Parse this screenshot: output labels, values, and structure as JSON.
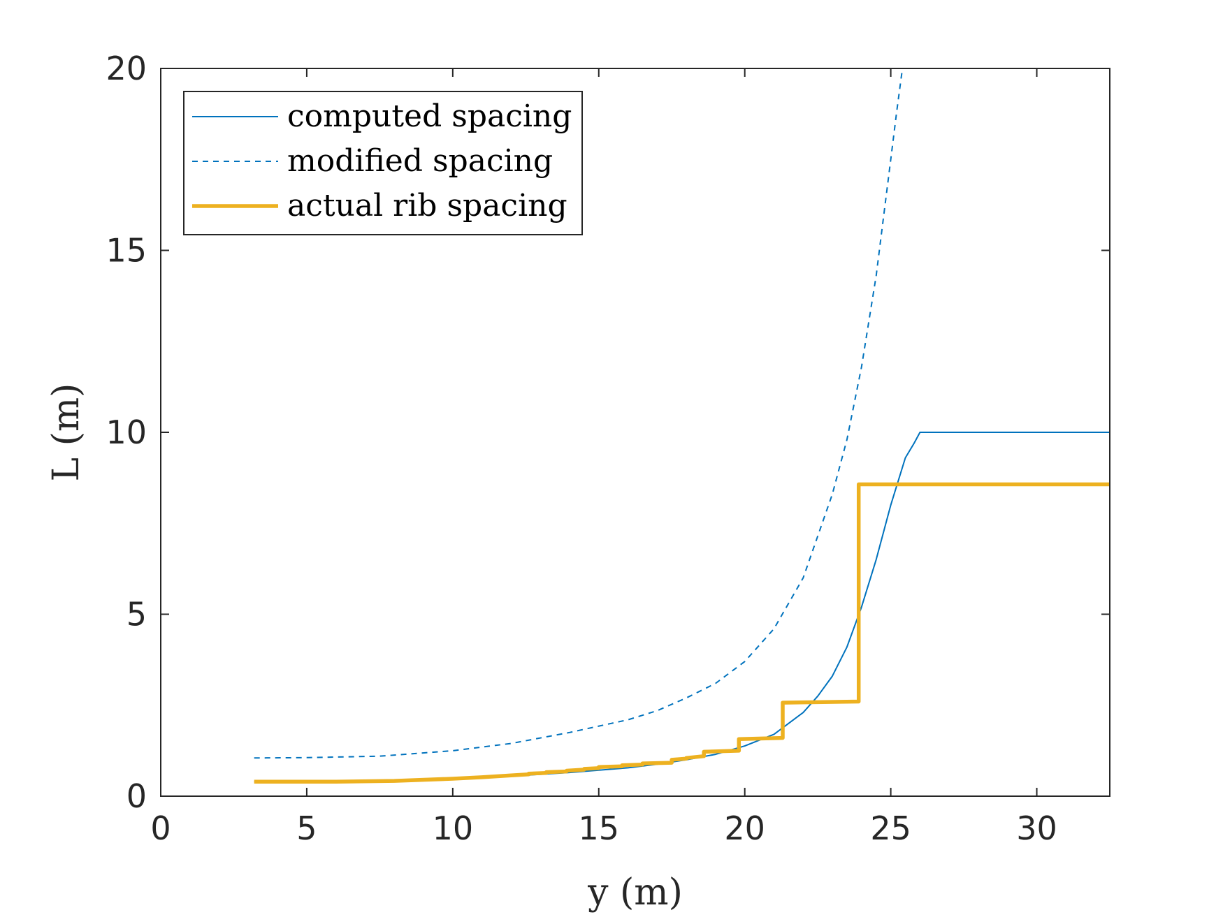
{
  "chart_data": {
    "type": "line",
    "xlabel": "y (m)",
    "ylabel": "L (m)",
    "xlim": [
      0,
      32.5
    ],
    "ylim": [
      0,
      20
    ],
    "xticks": [
      0,
      5,
      10,
      15,
      20,
      25,
      30
    ],
    "yticks": [
      0,
      5,
      10,
      15,
      20
    ],
    "xtick_labels": [
      "0",
      "5",
      "10",
      "15",
      "20",
      "25",
      "30"
    ],
    "ytick_labels": [
      "0",
      "5",
      "10",
      "15",
      "20"
    ],
    "legend_position": "top-left",
    "grid": false,
    "series": [
      {
        "name": "computed spacing",
        "style": "solid",
        "color": "#0072BD",
        "x": [
          3.2,
          5,
          8,
          10,
          12,
          14,
          16,
          17,
          18,
          19,
          20,
          21,
          22,
          22.5,
          23,
          23.5,
          24,
          24.5,
          25,
          25.5,
          25.8,
          26,
          32.5
        ],
        "y": [
          0.4,
          0.4,
          0.42,
          0.47,
          0.55,
          0.65,
          0.78,
          0.88,
          1.0,
          1.15,
          1.38,
          1.7,
          2.3,
          2.75,
          3.3,
          4.1,
          5.2,
          6.5,
          8.0,
          9.3,
          9.7,
          10.0,
          10.0
        ]
      },
      {
        "name": "modified spacing",
        "style": "dashed",
        "color": "#0072BD",
        "x": [
          3.2,
          5,
          7.5,
          10,
          12,
          14,
          16,
          17,
          18,
          19,
          20,
          21,
          22,
          23,
          23.5,
          24,
          24.5,
          25,
          25.2,
          25.4
        ],
        "y": [
          1.05,
          1.06,
          1.1,
          1.25,
          1.45,
          1.75,
          2.1,
          2.35,
          2.7,
          3.1,
          3.7,
          4.6,
          6.0,
          8.3,
          9.8,
          11.8,
          14.3,
          17.5,
          18.8,
          20.0
        ]
      },
      {
        "name": "actual rib spacing",
        "style": "solid",
        "color": "#EDB120",
        "x": [
          3.2,
          6,
          8,
          10,
          11,
          12,
          12.6,
          12.6,
          13.2,
          13.2,
          13.9,
          13.9,
          14.5,
          14.5,
          15.0,
          15.0,
          15.8,
          15.8,
          16.5,
          16.5,
          17.5,
          17.5,
          18.0,
          18.0,
          18.6,
          18.6,
          19.8,
          19.8,
          21.3,
          21.3,
          23.9,
          23.9,
          32.5
        ],
        "y": [
          0.4,
          0.4,
          0.42,
          0.48,
          0.52,
          0.57,
          0.6,
          0.62,
          0.64,
          0.66,
          0.68,
          0.7,
          0.73,
          0.75,
          0.77,
          0.8,
          0.82,
          0.85,
          0.87,
          0.9,
          0.92,
          1.0,
          1.03,
          1.05,
          1.1,
          1.22,
          1.25,
          1.57,
          1.6,
          2.57,
          2.6,
          8.57,
          8.57
        ]
      }
    ]
  }
}
